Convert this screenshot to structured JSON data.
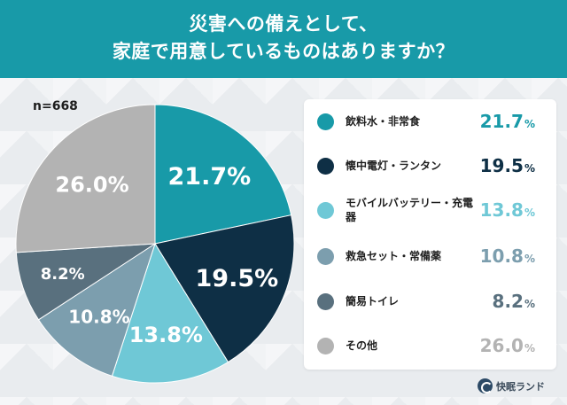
{
  "title_lines": [
    "災害への備えとして、",
    "家庭で用意しているものはありますか？"
  ],
  "sample_size": "n=668",
  "brand": "快眠ランド",
  "chart_data": {
    "type": "pie",
    "unit": "%",
    "slices": [
      {
        "label": "飲料水・非常食",
        "value": 21.7,
        "color": "#189aa8"
      },
      {
        "label": "懐中電灯・ランタン",
        "value": 19.5,
        "color": "#0e2f45"
      },
      {
        "label": "モバイルバッテリー・充電器",
        "value": 13.8,
        "color": "#6fc8d6"
      },
      {
        "label": "救急セット・常備薬",
        "value": 10.8,
        "color": "#7c9eae"
      },
      {
        "label": "簡易トイレ",
        "value": 8.2,
        "color": "#59707e"
      },
      {
        "label": "その他",
        "value": 26.0,
        "color": "#b3b3b3"
      }
    ]
  }
}
